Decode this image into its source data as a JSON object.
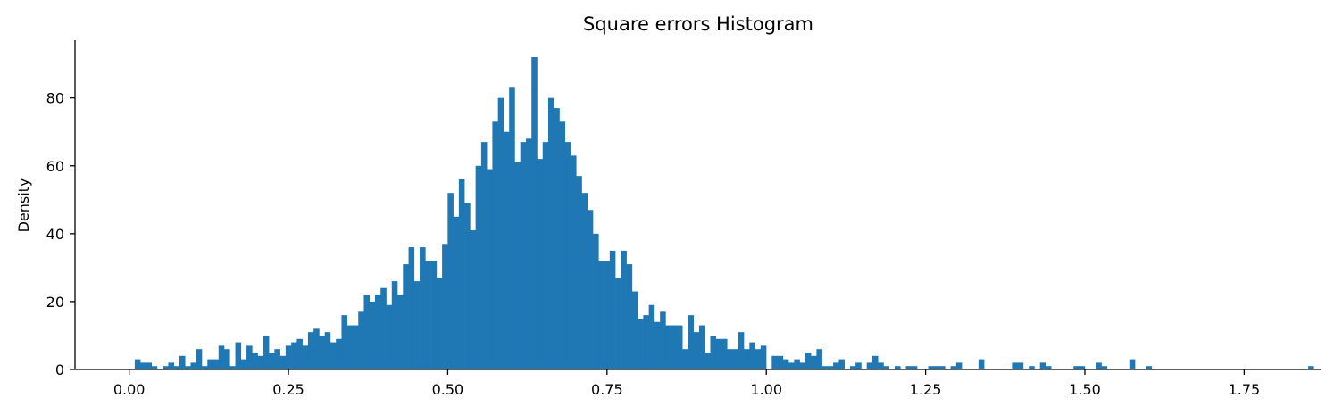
{
  "chart_data": {
    "type": "bar",
    "title": "Square errors Histogram",
    "xlabel": "",
    "ylabel": "Density",
    "xlim": [
      -0.085,
      1.87
    ],
    "ylim": [
      0,
      97
    ],
    "x_ticks": [
      0.0,
      0.25,
      0.5,
      0.75,
      1.0,
      1.25,
      1.5,
      1.75
    ],
    "x_tick_labels": [
      "0.00",
      "0.25",
      "0.50",
      "0.75",
      "1.00",
      "1.25",
      "1.50",
      "1.75"
    ],
    "y_ticks": [
      0,
      20,
      40,
      60,
      80
    ],
    "y_tick_labels": [
      "0",
      "20",
      "40",
      "60",
      "80"
    ],
    "bin_start": 0.0,
    "bin_width": 0.00877,
    "values": [
      0,
      3,
      2,
      2,
      1,
      0,
      1,
      2,
      1,
      4,
      1,
      2,
      6,
      1,
      3,
      3,
      7,
      6,
      1,
      8,
      3,
      7,
      5,
      4,
      10,
      5,
      6,
      4,
      7,
      8,
      9,
      7,
      11,
      12,
      10,
      11,
      8,
      9,
      16,
      13,
      13,
      17,
      22,
      20,
      22,
      24,
      19,
      26,
      22,
      31,
      36,
      26,
      36,
      32,
      32,
      27,
      37,
      52,
      45,
      56,
      49,
      41,
      60,
      67,
      59,
      73,
      80,
      70,
      83,
      61,
      67,
      68,
      92,
      62,
      67,
      80,
      77,
      73,
      67,
      63,
      57,
      52,
      47,
      40,
      32,
      32,
      35,
      27,
      35,
      31,
      23,
      15,
      16,
      19,
      14,
      17,
      13,
      13,
      13,
      6,
      16,
      11,
      13,
      5,
      10,
      9,
      9,
      6,
      6,
      11,
      6,
      8,
      6,
      7,
      0,
      4,
      4,
      3,
      2,
      3,
      2,
      5,
      4,
      6,
      1,
      1,
      2,
      3,
      0,
      1,
      2,
      0,
      2,
      4,
      2,
      1,
      0,
      1,
      0,
      1,
      1,
      0,
      0,
      1,
      1,
      1,
      0,
      1,
      2,
      0,
      0,
      0,
      3,
      0,
      0,
      0,
      0,
      0,
      2,
      2,
      0,
      1,
      0,
      2,
      1,
      0,
      0,
      0,
      0,
      1,
      1,
      0,
      0,
      2,
      1,
      0,
      0,
      0,
      0,
      3,
      0,
      0,
      1,
      0,
      0,
      0,
      0,
      0,
      0,
      0,
      0,
      0,
      0,
      0,
      0,
      0,
      0,
      0,
      0,
      0,
      0,
      0,
      0,
      0,
      0,
      0,
      0,
      0,
      0,
      0,
      0,
      1
    ]
  }
}
